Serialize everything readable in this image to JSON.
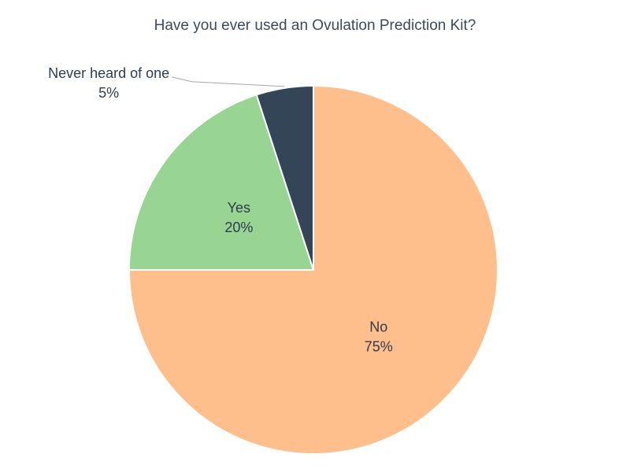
{
  "chart_data": {
    "type": "pie",
    "title": "Have you ever used an Ovulation Prediction Kit?",
    "categories": [
      "No",
      "Yes",
      "Never heard of one"
    ],
    "values": [
      75,
      20,
      5
    ],
    "value_labels": [
      "75%",
      "20%",
      "5%"
    ],
    "colors": [
      "#FEBF8C",
      "#98D592",
      "#344558"
    ],
    "start_angle_deg": 0,
    "direction": "clockwise",
    "legend": "none"
  }
}
